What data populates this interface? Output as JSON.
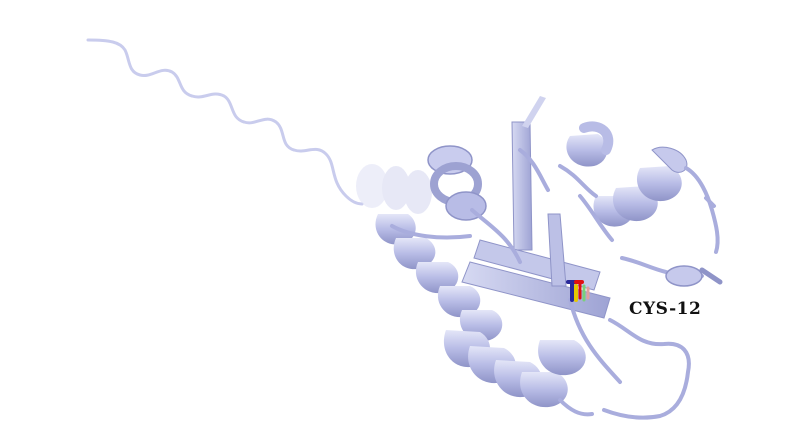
{
  "scene": {
    "background": "#ffffff",
    "ribbon_color": "#b8bce6",
    "ribbon_shadow": "#8f94c8",
    "ribbon_light": "#d9dcf4"
  },
  "residue": {
    "label": "CYS-12",
    "stick_colors": [
      "#2a2a9a",
      "#e01010",
      "#e6c800",
      "#7ad07a"
    ]
  }
}
